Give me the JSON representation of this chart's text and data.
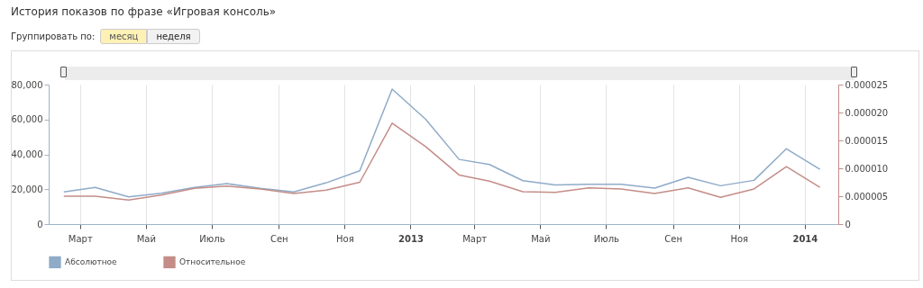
{
  "chart_data": {
    "type": "line",
    "title": "История показов по фразе «Игровая консоль»",
    "annotations": [
      "Группировать по:",
      "месяц",
      "неделя"
    ],
    "x": [
      "2012-02-15",
      "2012-03-15",
      "2012-04-15",
      "2012-05-15",
      "2012-06-15",
      "2012-07-15",
      "2012-08-15",
      "2012-09-15",
      "2012-10-15",
      "2012-11-15",
      "2012-12-15",
      "2013-01-15",
      "2013-02-15",
      "2013-03-15",
      "2013-04-15",
      "2013-05-15",
      "2013-06-15",
      "2013-07-15",
      "2013-08-15",
      "2013-09-15",
      "2013-10-15",
      "2013-11-15",
      "2013-12-15",
      "2014-01-15"
    ],
    "series": [
      {
        "name": "Абсолютное",
        "color": "#8fabc8",
        "values": [
          18500,
          21000,
          15600,
          17700,
          21000,
          23200,
          20500,
          18500,
          23700,
          30600,
          77400,
          60100,
          37100,
          34200,
          24900,
          22500,
          22800,
          22800,
          20600,
          26800,
          22000,
          25100,
          43200,
          31400
        ]
      },
      {
        "name": "Относительное",
        "color": "#c48d88",
        "axis": "y2",
        "values": [
          5e-06,
          5e-06,
          4.3e-06,
          5.2e-06,
          6.4e-06,
          6.8e-06,
          6.3e-06,
          5.5e-06,
          6.1e-06,
          7.5e-06,
          1.81e-05,
          1.39e-05,
          8.8e-06,
          7.7e-06,
          5.8e-06,
          5.7e-06,
          6.5e-06,
          6.3e-06,
          5.5e-06,
          6.5e-06,
          4.8e-06,
          6.3e-06,
          1.03e-05,
          6.6e-06
        ]
      }
    ],
    "xlim": [
      "2012-02-01",
      "2014-02-01"
    ],
    "xticks": [
      {
        "value": "2012-03-01",
        "label": "Март"
      },
      {
        "value": "2012-05-01",
        "label": "Май"
      },
      {
        "value": "2012-07-01",
        "label": "Июль"
      },
      {
        "value": "2012-09-01",
        "label": "Сен"
      },
      {
        "value": "2012-11-01",
        "label": "Ноя"
      },
      {
        "value": "2013-01-01",
        "label": "2013"
      },
      {
        "value": "2013-03-01",
        "label": "Март"
      },
      {
        "value": "2013-05-01",
        "label": "Май"
      },
      {
        "value": "2013-07-01",
        "label": "Июль"
      },
      {
        "value": "2013-09-01",
        "label": "Сен"
      },
      {
        "value": "2013-11-01",
        "label": "Ноя"
      },
      {
        "value": "2014-01-01",
        "label": "2014"
      }
    ],
    "ylim": [
      0,
      80000
    ],
    "yticks": [
      {
        "value": 0,
        "label": "0"
      },
      {
        "value": 20000,
        "label": "20,000"
      },
      {
        "value": 40000,
        "label": "40,000"
      },
      {
        "value": 60000,
        "label": "60,000"
      },
      {
        "value": 80000,
        "label": "80,000"
      }
    ],
    "y2lim": [
      0,
      2.5e-05
    ],
    "y2ticks": [
      {
        "value": 0,
        "label": "0"
      },
      {
        "value": 5e-06,
        "label": "0.000005"
      },
      {
        "value": 1e-05,
        "label": "0.000010"
      },
      {
        "value": 1.5e-05,
        "label": "0.000015"
      },
      {
        "value": 2e-05,
        "label": "0.000020"
      },
      {
        "value": 2.5e-05,
        "label": "0.000025"
      }
    ],
    "grid": "x",
    "legend": "bottom left"
  }
}
